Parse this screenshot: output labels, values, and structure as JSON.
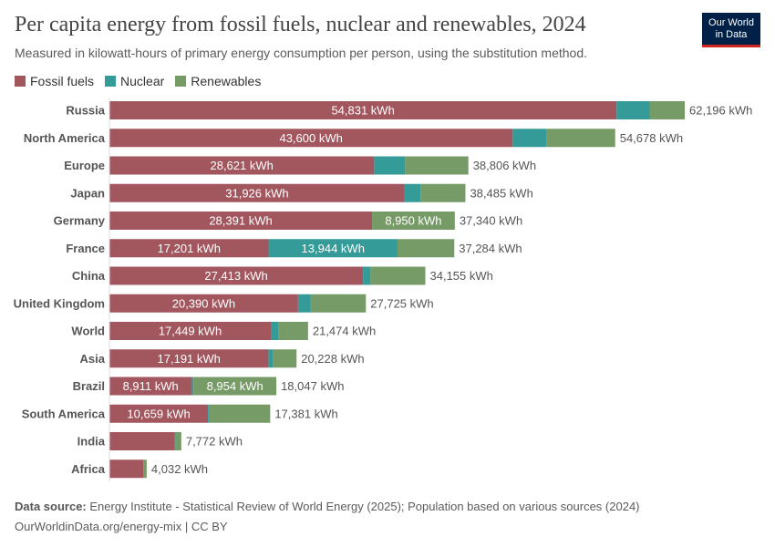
{
  "title": "Per capita energy from fossil fuels, nuclear and renewables, 2024",
  "subtitle": "Measured in kilowatt-hours of primary energy consumption per person, using the substitution method.",
  "logo": "Our World in Data",
  "footer": {
    "source_label": "Data source:",
    "source": "Energy Institute - Statistical Review of World Energy (2025); Population based on various sources (2024)",
    "url": "OurWorldinData.org/energy-mix | CC BY"
  },
  "chart_data": {
    "type": "bar",
    "orientation": "horizontal",
    "stacked": true,
    "unit": "kWh",
    "categories": [
      "Russia",
      "North America",
      "Europe",
      "Japan",
      "Germany",
      "France",
      "China",
      "United Kingdom",
      "World",
      "Asia",
      "Brazil",
      "South America",
      "India",
      "Africa"
    ],
    "series": [
      {
        "name": "Fossil fuels",
        "color": "#a2575f",
        "values": [
          54831,
          43600,
          28621,
          31926,
          28391,
          17201,
          27413,
          20390,
          17449,
          17191,
          8911,
          10659,
          7040,
          3650
        ]
      },
      {
        "name": "Nuclear",
        "color": "#359b98",
        "values": [
          3570,
          3620,
          3350,
          1720,
          0,
          13944,
          815,
          1380,
          855,
          490,
          182,
          130,
          100,
          40
        ]
      },
      {
        "name": "Renewables",
        "color": "#779b67",
        "values": [
          3795,
          7458,
          6835,
          4839,
          8950,
          6139,
          5927,
          5955,
          3170,
          2547,
          8954,
          6592,
          632,
          342
        ]
      }
    ],
    "totals": [
      62196,
      54678,
      38806,
      38485,
      37340,
      37284,
      34155,
      27725,
      21474,
      20228,
      18047,
      17381,
      7772,
      4032
    ],
    "legend": "top-left",
    "grid": false
  }
}
